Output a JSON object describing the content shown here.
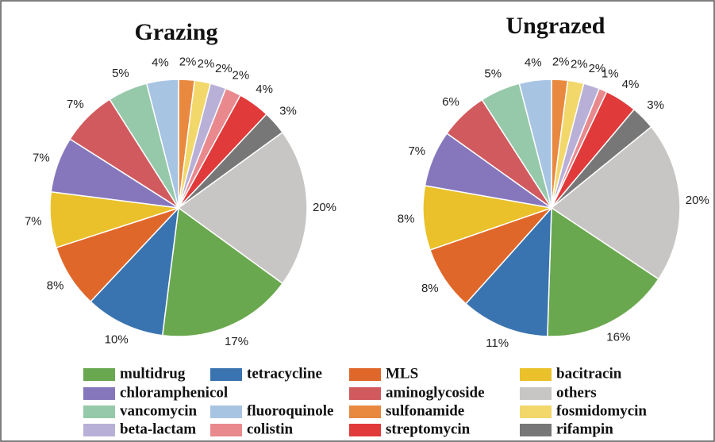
{
  "chart_data": [
    {
      "type": "pie",
      "title": "Grazing",
      "categories": [
        "sulfonamide",
        "fosmidomycin",
        "beta-lactam",
        "colistin",
        "streptomycin",
        "rifampin",
        "others",
        "multidrug",
        "tetracycline",
        "MLS",
        "bacitracin",
        "chloramphenicol",
        "aminoglycoside",
        "vancomycin",
        "fluoroquinole"
      ],
      "values": [
        2,
        2,
        2,
        2,
        4,
        3,
        20,
        17,
        10,
        8,
        7,
        7,
        7,
        5,
        4
      ],
      "value_labels": [
        "2%",
        "2%",
        "2%",
        "2%",
        "4%",
        "3%",
        "20%",
        "17%",
        "10%",
        "8%",
        "7%",
        "7%",
        "7%",
        "5%",
        "4%"
      ],
      "colors": [
        "#e8893f",
        "#f2d76b",
        "#b9b0d8",
        "#e9898d",
        "#e03a3a",
        "#777777",
        "#c8c6c4",
        "#6aa84f",
        "#3a74b0",
        "#e0672a",
        "#eac12a",
        "#8677bd",
        "#d15a5e",
        "#96c9aa",
        "#a8c4e3"
      ]
    },
    {
      "type": "pie",
      "title": "Ungrazed",
      "categories": [
        "sulfonamide",
        "fosmidomycin",
        "beta-lactam",
        "colistin",
        "streptomycin",
        "rifampin",
        "others",
        "multidrug",
        "tetracycline",
        "MLS",
        "bacitracin",
        "chloramphenicol",
        "aminoglycoside",
        "vancomycin",
        "fluoroquinole"
      ],
      "values": [
        2,
        2,
        2,
        1,
        4,
        3,
        20,
        16,
        11,
        8,
        8,
        7,
        6,
        5,
        4
      ],
      "value_labels": [
        "2%",
        "2%",
        "2%",
        "1%",
        "4%",
        "3%",
        "20%",
        "16%",
        "11%",
        "8%",
        "8%",
        "7%",
        "6%",
        "5%",
        "4%"
      ],
      "colors": [
        "#e8893f",
        "#f2d76b",
        "#b9b0d8",
        "#e9898d",
        "#e03a3a",
        "#777777",
        "#c8c6c4",
        "#6aa84f",
        "#3a74b0",
        "#e0672a",
        "#eac12a",
        "#8677bd",
        "#d15a5e",
        "#96c9aa",
        "#a8c4e3"
      ]
    }
  ]
}
